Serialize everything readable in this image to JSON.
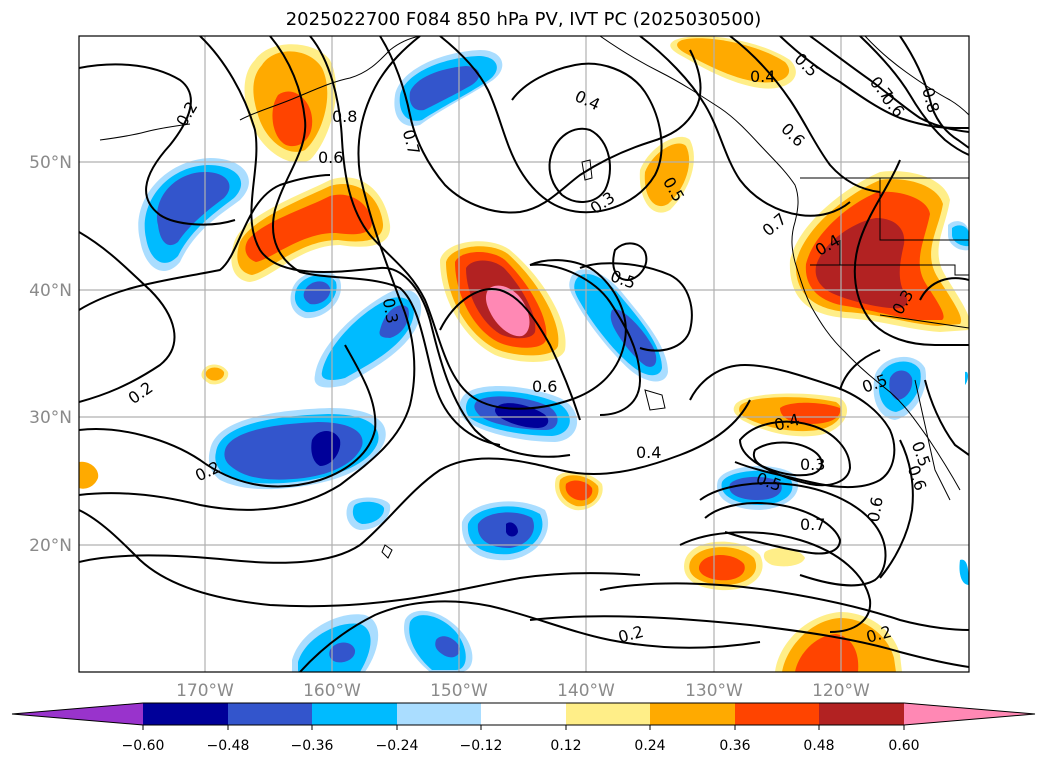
{
  "title": "2025022700 F084 850 hPa PV, IVT PC (2025030500)",
  "lon_labels": [
    "170°W",
    "160°W",
    "150°W",
    "140°W",
    "130°W",
    "120°W"
  ],
  "lat_labels": [
    "50°N",
    "40°N",
    "30°N",
    "20°N"
  ],
  "colorbar": {
    "ticks": [
      "−0.60",
      "−0.48",
      "−0.36",
      "−0.24",
      "−0.12",
      "0.12",
      "0.24",
      "0.36",
      "0.48",
      "0.60"
    ],
    "colors": [
      "#9933cc",
      "#000099",
      "#3355cc",
      "#00bbff",
      "#aaddff",
      "#ffffff",
      "#ffee88",
      "#ffaa00",
      "#ff4400",
      "#b22222",
      "#ff88b4"
    ]
  },
  "contour_labels": {
    "c1": "0.2",
    "c2": "0.8",
    "c3": "0.7",
    "c4": "0.6",
    "c5": "0.4",
    "c6": "0.5",
    "c7": "0.3",
    "c8": "0.4",
    "c9": "0.5",
    "c10": "0.7",
    "c11": "0.8",
    "c12": "0.6",
    "c13": "0.6",
    "c14": "0.7",
    "c15": "0.4",
    "c16": "0.3",
    "c17": "0.5",
    "c18": "0.3",
    "c19": "0.2",
    "c20": "0.6",
    "c21": "0.2",
    "c22": "0.4",
    "c23": "0.4",
    "c24": "0.3",
    "c25": "0.5",
    "c26": "0.5",
    "c27": "0.7",
    "c28": "0.6",
    "c29": "0.2",
    "c30": "0.2",
    "c31": "0.5",
    "c32": "0.6"
  }
}
